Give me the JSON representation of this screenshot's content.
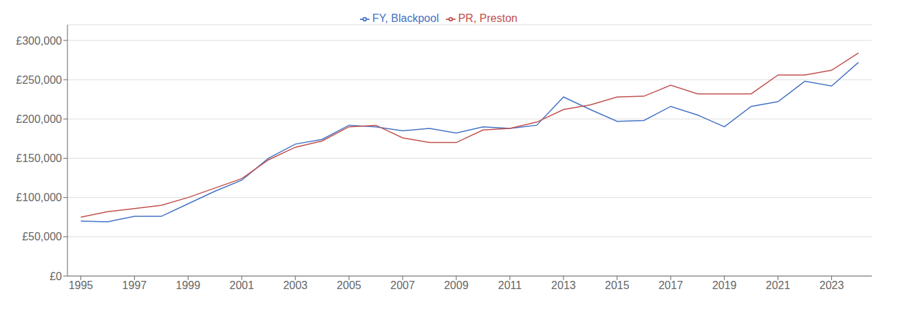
{
  "chart_data": {
    "type": "line",
    "x": [
      1995,
      1996,
      1997,
      1998,
      1999,
      2000,
      2001,
      2002,
      2003,
      2004,
      2005,
      2006,
      2007,
      2008,
      2009,
      2010,
      2011,
      2012,
      2013,
      2014,
      2015,
      2016,
      2017,
      2018,
      2019,
      2020,
      2021,
      2022,
      2023,
      2024
    ],
    "series": [
      {
        "name": "FY, Blackpool",
        "color": "#4472c4",
        "values": [
          70000,
          69000,
          76000,
          76000,
          92000,
          108000,
          122000,
          150000,
          168000,
          174000,
          192000,
          190000,
          185000,
          188000,
          182000,
          190000,
          188000,
          192000,
          228000,
          212000,
          197000,
          198000,
          216000,
          205000,
          190000,
          216000,
          222000,
          248000,
          242000,
          272000
        ]
      },
      {
        "name": "PR, Preston",
        "color": "#c0504d",
        "values": [
          75000,
          82000,
          86000,
          90000,
          100000,
          112000,
          124000,
          148000,
          164000,
          172000,
          190000,
          192000,
          176000,
          170000,
          170000,
          186000,
          188000,
          196000,
          212000,
          218000,
          228000,
          229000,
          243000,
          232000,
          232000,
          232000,
          256000,
          256000,
          262000,
          284000
        ]
      }
    ],
    "xlim": [
      1994.5,
      2024.5
    ],
    "xticks": [
      1995,
      1997,
      1999,
      2001,
      2003,
      2005,
      2007,
      2009,
      2011,
      2013,
      2015,
      2017,
      2019,
      2021,
      2023
    ],
    "ylim": [
      0,
      320000
    ],
    "yticks": [
      {
        "value": 0,
        "label": "£0"
      },
      {
        "value": 50000,
        "label": "£50,000"
      },
      {
        "value": 100000,
        "label": "£100,000"
      },
      {
        "value": 150000,
        "label": "£150,000"
      },
      {
        "value": 200000,
        "label": "£200,000"
      },
      {
        "value": 250000,
        "label": "£250,000"
      },
      {
        "value": 300000,
        "label": "£300,000"
      }
    ],
    "grid": true,
    "legend": "top"
  }
}
